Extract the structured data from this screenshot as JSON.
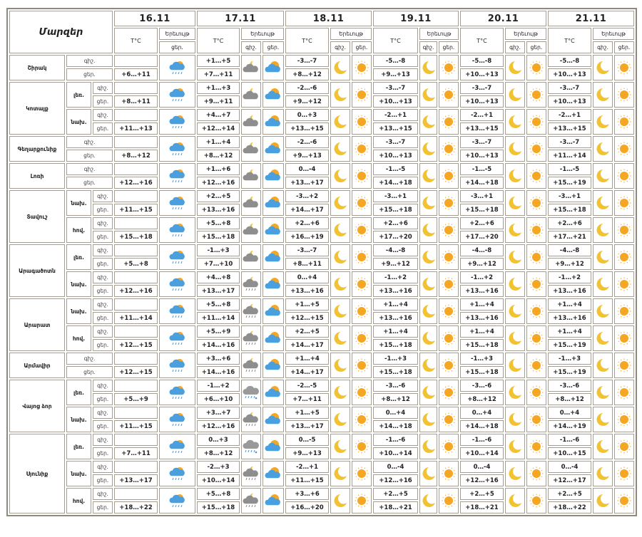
{
  "header": {
    "regions_label": "Մարզեր",
    "dates": [
      "16.11",
      "17.11",
      "18.11",
      "19.11",
      "20.11",
      "21.11"
    ],
    "temp_label": "T°C",
    "phenomenon_label": "Երեւույթ",
    "night_label": "գիշ.",
    "day_label": "ցեր."
  },
  "colors": {
    "border": "#a39d92",
    "moon": "#f2c230",
    "sun": "#f5a623",
    "cloud_blue": "#4a9fde",
    "cloud_gray": "#8e8e8e"
  },
  "default_icons": {
    "night": "moon-icon",
    "day": "sun-icon"
  },
  "zones": [
    {
      "name": "Շիրակ",
      "rows": [
        {
          "sub": "",
          "night": [
            "",
            "+1…+5",
            "-3…-7",
            "-5…-8",
            "-5…-8",
            "-5…-8"
          ],
          "day": [
            "+6…+11",
            "+7…+11",
            "+8…+12",
            "+9…+13",
            "+10…+13",
            "+10…+13"
          ],
          "icons": [
            "rain-sun-cloud-icon",
            "moon-cloud-icon",
            "sun-cloud-icon"
          ]
        }
      ]
    },
    {
      "name": "Կոտայք",
      "rows": [
        {
          "sub": "լեռ.",
          "night": [
            "",
            "+1…+3",
            "-2…-6",
            "-3…-7",
            "-3…-7",
            "-3…-7"
          ],
          "day": [
            "+8…+11",
            "+9…+11",
            "+9…+12",
            "+10…+13",
            "+10…+13",
            "+10…+13"
          ],
          "icons": [
            "rain-sun-cloud-icon",
            "moon-cloud-icon",
            "sun-cloud-icon"
          ]
        },
        {
          "sub": "նախ.",
          "night": [
            "",
            "+4…+7",
            "0…+3",
            "-2…+1",
            "-2…+1",
            "-2…+1"
          ],
          "day": [
            "+11…+13",
            "+12…+14",
            "+13…+15",
            "+13…+15",
            "+13…+15",
            "+13…+15"
          ],
          "icons": [
            "rain-sun-cloud-icon",
            "moon-cloud-icon",
            "sun-cloud-icon"
          ]
        }
      ]
    },
    {
      "name": "Գեղարքունիք",
      "rows": [
        {
          "sub": "",
          "night": [
            "",
            "+1…+4",
            "-2…-6",
            "-3…-7",
            "-3…-7",
            "-3…-7"
          ],
          "day": [
            "+8…+12",
            "+8…+12",
            "+9…+13",
            "+10…+13",
            "+10…+13",
            "+11…+14"
          ],
          "icons": [
            "rain-sun-cloud-icon",
            "moon-cloud-icon",
            "sun-cloud-icon"
          ]
        }
      ]
    },
    {
      "name": "Լոռի",
      "rows": [
        {
          "sub": "",
          "night": [
            "",
            "+1…+6",
            "0…-4",
            "-1…-5",
            "-1…-5",
            "-1…-5"
          ],
          "day": [
            "+12…+16",
            "+12…+16",
            "+13…+17",
            "+14…+18",
            "+14…+18",
            "+15…+19"
          ],
          "icons": [
            "rain-sun-cloud-icon",
            "moon-cloud-icon",
            "sun-cloud-icon"
          ]
        }
      ]
    },
    {
      "name": "Տավուշ",
      "rows": [
        {
          "sub": "նախ.",
          "night": [
            "",
            "+2…+5",
            "-3…+2",
            "-3…+1",
            "-3…+1",
            "-3…+1"
          ],
          "day": [
            "+11…+15",
            "+13…+16",
            "+14…+17",
            "+15…+18",
            "+15…+18",
            "+15…+18"
          ],
          "icons": [
            "rain-sun-cloud-icon",
            "moon-cloud-icon",
            "sun-cloud-icon"
          ]
        },
        {
          "sub": "հով.",
          "night": [
            "",
            "+5…+8",
            "+2…+6",
            "+2…+6",
            "+2…+6",
            "+2…+6"
          ],
          "day": [
            "+15…+18",
            "+15…+18",
            "+16…+19",
            "+17…+20",
            "+17…+20",
            "+17…+21"
          ],
          "icons": [
            "rain-sun-cloud-icon",
            "moon-cloud-icon",
            "sun-cloud-icon"
          ]
        }
      ]
    },
    {
      "name": "Արագածոտն",
      "rows": [
        {
          "sub": "լեռ.",
          "night": [
            "",
            "-1…+3",
            "-3…-7",
            "-4…-8",
            "-4…-8",
            "-4…-8"
          ],
          "day": [
            "+5…+8",
            "+7…+10",
            "+8…+11",
            "+9…+12",
            "+9…+12",
            "+9…+12"
          ],
          "icons": [
            "rain-sun-cloud-icon",
            "moon-cloud-icon",
            "sun-cloud-icon"
          ]
        },
        {
          "sub": "նախ.",
          "night": [
            "",
            "+4…+8",
            "0…+4",
            "-1…+2",
            "-1…+2",
            "-1…+2"
          ],
          "day": [
            "+12…+16",
            "+13…+17",
            "+13…+16",
            "+13…+16",
            "+13…+16",
            "+13…+16"
          ],
          "icons": [
            "rain-sun-cloud-icon",
            "moon-rain-cloud-icon",
            "sun-cloud-icon"
          ]
        }
      ]
    },
    {
      "name": "Արարատ",
      "rows": [
        {
          "sub": "նախ.",
          "night": [
            "",
            "+5…+8",
            "+1…+5",
            "+1…+4",
            "+1…+4",
            "+1…+4"
          ],
          "day": [
            "+11…+14",
            "+11…+14",
            "+12…+15",
            "+13…+16",
            "+13…+16",
            "+13…+16"
          ],
          "icons": [
            "rain-sun-cloud-icon",
            "moon-rain-cloud-icon",
            "sun-cloud-icon"
          ]
        },
        {
          "sub": "հով.",
          "night": [
            "",
            "+5…+9",
            "+2…+5",
            "+1…+4",
            "+1…+4",
            "+1…+4"
          ],
          "day": [
            "+12…+15",
            "+14…+16",
            "+14…+17",
            "+15…+18",
            "+15…+18",
            "+15…+19"
          ],
          "icons": [
            "rain-sun-cloud-icon",
            "moon-rain-cloud-icon",
            "sun-cloud-icon"
          ]
        }
      ]
    },
    {
      "name": "Արմավիր",
      "rows": [
        {
          "sub": "",
          "night": [
            "",
            "+3…+6",
            "+1…+4",
            "-1…+3",
            "-1…+3",
            "-1…+3"
          ],
          "day": [
            "+12…+15",
            "+14…+16",
            "+14…+17",
            "+15…+18",
            "+15…+18",
            "+15…+19"
          ],
          "icons": [
            "rain-sun-cloud-icon",
            "moon-rain-cloud-icon",
            "sun-cloud-icon"
          ]
        }
      ]
    },
    {
      "name": "Վայոց ձոր",
      "rows": [
        {
          "sub": "լեռ.",
          "night": [
            "",
            "-1…+2",
            "-2…-5",
            "-3…-6",
            "-3…-6",
            "-3…-6"
          ],
          "day": [
            "+5…+9",
            "+6…+10",
            "+7…+11",
            "+8…+12",
            "+8…+12",
            "+8…+12"
          ],
          "icons": [
            "rain-sun-cloud-icon",
            "snow-cloud-icon",
            "sun-cloud-icon"
          ]
        },
        {
          "sub": "նախ.",
          "night": [
            "",
            "+3…+7",
            "+1…+5",
            "0…+4",
            "0…+4",
            "0…+4"
          ],
          "day": [
            "+11…+15",
            "+12…+16",
            "+13…+17",
            "+14…+18",
            "+14…+18",
            "+14…+19"
          ],
          "icons": [
            "rain-sun-cloud-icon",
            "moon-rain-cloud-icon",
            "sun-cloud-icon"
          ]
        }
      ]
    },
    {
      "name": "Սյունիք",
      "rows": [
        {
          "sub": "լեռ.",
          "night": [
            "",
            "0…+3",
            "0…-5",
            "-1…-6",
            "-1…-6",
            "-1…-6"
          ],
          "day": [
            "+7…+11",
            "+8…+12",
            "+9…+13",
            "+10…+14",
            "+10…+14",
            "+10…+15"
          ],
          "icons": [
            "rain-sun-cloud-icon",
            "snow-cloud-icon",
            "sun-cloud-icon"
          ]
        },
        {
          "sub": "նախ.",
          "night": [
            "",
            "-2…+3",
            "-2…+1",
            "0…-4",
            "0…-4",
            "0…-4"
          ],
          "day": [
            "+13…+17",
            "+10…+14",
            "+11…+15",
            "+12…+16",
            "+12…+16",
            "+12…+17"
          ],
          "icons": [
            "rain-sun-cloud-icon",
            "moon-rain-cloud-icon",
            "sun-cloud-icon"
          ]
        },
        {
          "sub": "հով.",
          "night": [
            "",
            "+5…+8",
            "+3…+6",
            "+2…+5",
            "+2…+5",
            "+2…+5"
          ],
          "day": [
            "+18…+22",
            "+15…+18",
            "+16…+20",
            "+18…+21",
            "+18…+21",
            "+18…+22"
          ],
          "icons": [
            "rain-sun-cloud-icon",
            "moon-rain-cloud-icon",
            "sun-cloud-icon"
          ]
        }
      ]
    }
  ]
}
